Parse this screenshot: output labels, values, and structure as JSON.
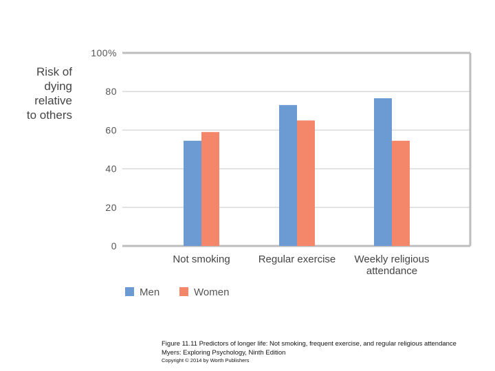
{
  "chart_data": {
    "type": "bar",
    "ylabel_lines": [
      "Risk of",
      "dying",
      "relative",
      "to others"
    ],
    "yticks": [
      "0",
      "20",
      "40",
      "60",
      "80",
      "100%"
    ],
    "ylim": [
      0,
      100
    ],
    "categories": [
      [
        "Not smoking"
      ],
      [
        "Regular exercise"
      ],
      [
        "Weekly religious",
        "attendance"
      ]
    ],
    "series": [
      {
        "name": "Men",
        "values": [
          54.5,
          73,
          76.5
        ]
      },
      {
        "name": "Women",
        "values": [
          59,
          65,
          54.5
        ]
      }
    ],
    "colors": {
      "Men": "#6b9bd2",
      "Women": "#f4866a"
    },
    "grid": true,
    "legend": "bottom-left"
  },
  "caption": {
    "line1": "Figure 11.11  Predictors of longer life: Not smoking, frequent exercise, and regular religious attendance",
    "line2": "Myers: Exploring Psychology, Ninth Edition",
    "line3": "Copyright © 2014 by Worth Publishers"
  }
}
